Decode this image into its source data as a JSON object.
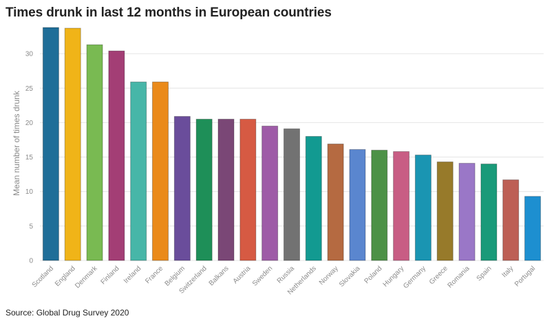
{
  "title": "Times drunk in last 12 months in European countries",
  "source": "Source: Global Drug Survey 2020",
  "chart_data": {
    "type": "bar",
    "title": "Times drunk in last 12 months in European countries",
    "xlabel": "",
    "ylabel": "Mean number of times drunk",
    "ylim": [
      0,
      34
    ],
    "yticks": [
      0,
      5,
      10,
      15,
      20,
      25,
      30
    ],
    "grid": true,
    "categories": [
      "Scotland",
      "England",
      "Denmark",
      "Finland",
      "Ireland",
      "France",
      "Belgium",
      "Switzerland",
      "Balkans",
      "Austria",
      "Sweden",
      "Russia",
      "Netherlands",
      "Norway",
      "Slovakia",
      "Poland",
      "Hungary",
      "Germany",
      "Greece",
      "Romania",
      "Spain",
      "Italy",
      "Portugal"
    ],
    "values": [
      33.8,
      33.7,
      31.3,
      30.4,
      25.9,
      25.9,
      20.9,
      20.5,
      20.5,
      20.5,
      19.5,
      19.1,
      18.0,
      16.9,
      16.1,
      16.0,
      15.8,
      15.3,
      14.3,
      14.1,
      14.0,
      11.7,
      9.3
    ],
    "colors": [
      "#1f6e98",
      "#f0b418",
      "#79ba52",
      "#a33e75",
      "#47b6a8",
      "#ea8a1a",
      "#6a4d9b",
      "#1e8f58",
      "#7a4776",
      "#d65a43",
      "#9e5ba7",
      "#727272",
      "#129a91",
      "#b56a41",
      "#5a86cf",
      "#4c9146",
      "#c85d84",
      "#1a95b2",
      "#977a2a",
      "#9a77c7",
      "#1a9a79",
      "#bd5f55",
      "#1d8fd0"
    ]
  }
}
